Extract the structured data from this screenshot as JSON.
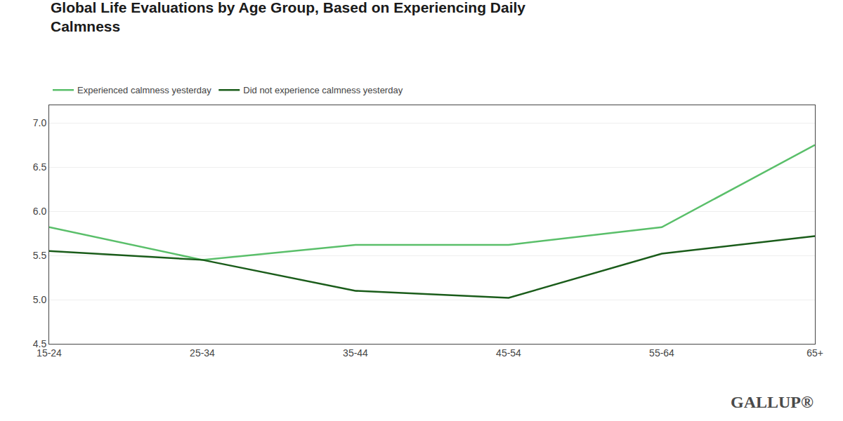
{
  "chart_data": {
    "type": "line",
    "title": "Global Life Evaluations by Age Group, Based on Experiencing Daily\nCalmness",
    "categories": [
      "15-24",
      "25-34",
      "35-44",
      "45-54",
      "55-64",
      "65+"
    ],
    "series": [
      {
        "name": "Experienced calmness yesterday",
        "color": "#5abf6a",
        "values": [
          5.82,
          5.45,
          5.62,
          5.62,
          5.82,
          6.75
        ]
      },
      {
        "name": "Did not experience calmness yesterday",
        "color": "#1a5c1a",
        "values": [
          5.55,
          5.45,
          5.1,
          5.02,
          5.52,
          5.72
        ]
      }
    ],
    "ylim": [
      4.5,
      7.2
    ],
    "yticks": [
      4.5,
      {
        "value": 5.0,
        "label": "5.0"
      },
      5.5,
      {
        "value": 6.0,
        "label": "6.0"
      },
      6.5,
      {
        "value": 7.0,
        "label": "7.0"
      }
    ],
    "grid": true,
    "legend": "top-left",
    "annotations": [
      "GALLUP®"
    ]
  }
}
